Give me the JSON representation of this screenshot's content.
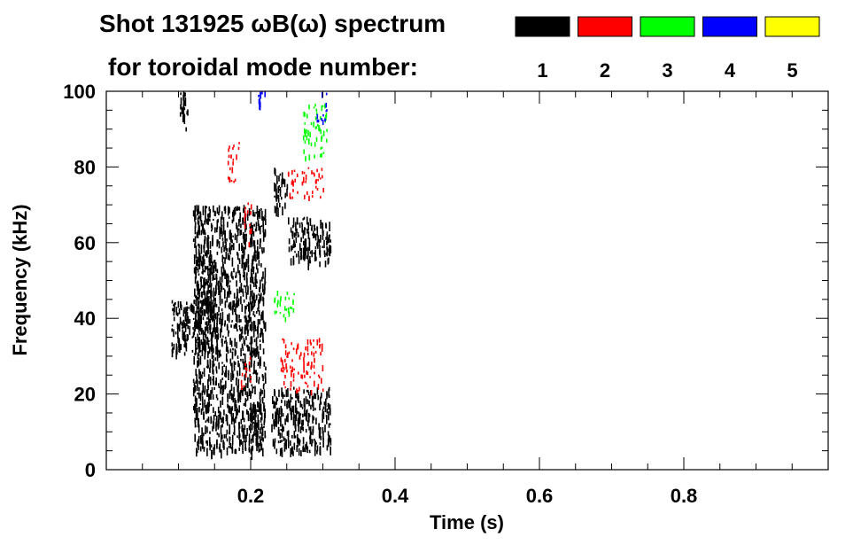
{
  "chart_data": {
    "type": "heatmap",
    "title_line1": "Shot 131925 ωB(ω) spectrum",
    "title_line2": "for toroidal mode number:",
    "xlabel": "Time (s)",
    "ylabel": "Frequency (kHz)",
    "xlim": [
      0.0,
      1.0
    ],
    "ylim": [
      0,
      100
    ],
    "x_ticks": [
      {
        "value": 0.2,
        "label": "0.2"
      },
      {
        "value": 0.4,
        "label": "0.4"
      },
      {
        "value": 0.6,
        "label": "0.6"
      },
      {
        "value": 0.8,
        "label": "0.8"
      }
    ],
    "y_ticks": [
      {
        "value": 0,
        "label": "0"
      },
      {
        "value": 20,
        "label": "20"
      },
      {
        "value": 40,
        "label": "40"
      },
      {
        "value": 60,
        "label": "60"
      },
      {
        "value": 80,
        "label": "80"
      },
      {
        "value": 100,
        "label": "100"
      }
    ],
    "legend": {
      "placement": "top-right",
      "items": [
        {
          "label": "1",
          "color": "#000000"
        },
        {
          "label": "2",
          "color": "#ff0000"
        },
        {
          "label": "3",
          "color": "#00ff00"
        },
        {
          "label": "4",
          "color": "#0000ff"
        },
        {
          "label": "5",
          "color": "#ffff00"
        }
      ]
    },
    "regions": [
      {
        "mode": "1",
        "x": [
          0.09,
          0.145
        ],
        "y": [
          31,
          45
        ]
      },
      {
        "mode": "1",
        "x": [
          0.125,
          0.15
        ],
        "y": [
          40,
          57
        ]
      },
      {
        "mode": "1",
        "x": [
          0.1,
          0.112
        ],
        "y": [
          90,
          100
        ]
      },
      {
        "mode": "1",
        "x": [
          0.12,
          0.22
        ],
        "y": [
          5,
          70
        ]
      },
      {
        "mode": "1",
        "x": [
          0.2,
          0.215
        ],
        "y": [
          6,
          18
        ]
      },
      {
        "mode": "1",
        "x": [
          0.228,
          0.31
        ],
        "y": [
          5,
          22
        ]
      },
      {
        "mode": "1",
        "x": [
          0.232,
          0.25
        ],
        "y": [
          69,
          80
        ]
      },
      {
        "mode": "1",
        "x": [
          0.25,
          0.31
        ],
        "y": [
          55,
          67
        ]
      },
      {
        "mode": "1",
        "x": [
          0.3,
          0.31
        ],
        "y": [
          58,
          64
        ]
      },
      {
        "mode": "2",
        "x": [
          0.168,
          0.185
        ],
        "y": [
          76,
          87
        ]
      },
      {
        "mode": "2",
        "x": [
          0.19,
          0.2
        ],
        "y": [
          60,
          72
        ]
      },
      {
        "mode": "2",
        "x": [
          0.24,
          0.3
        ],
        "y": [
          21,
          35
        ]
      },
      {
        "mode": "2",
        "x": [
          0.25,
          0.3
        ],
        "y": [
          72,
          80
        ]
      },
      {
        "mode": "2",
        "x": [
          0.185,
          0.2
        ],
        "y": [
          22,
          30
        ]
      },
      {
        "mode": "3",
        "x": [
          0.27,
          0.305
        ],
        "y": [
          82,
          97
        ]
      },
      {
        "mode": "3",
        "x": [
          0.23,
          0.26
        ],
        "y": [
          40,
          48
        ]
      },
      {
        "mode": "4",
        "x": [
          0.29,
          0.305
        ],
        "y": [
          92,
          100
        ]
      },
      {
        "mode": "4",
        "x": [
          0.21,
          0.22
        ],
        "y": [
          96,
          100
        ]
      }
    ]
  }
}
